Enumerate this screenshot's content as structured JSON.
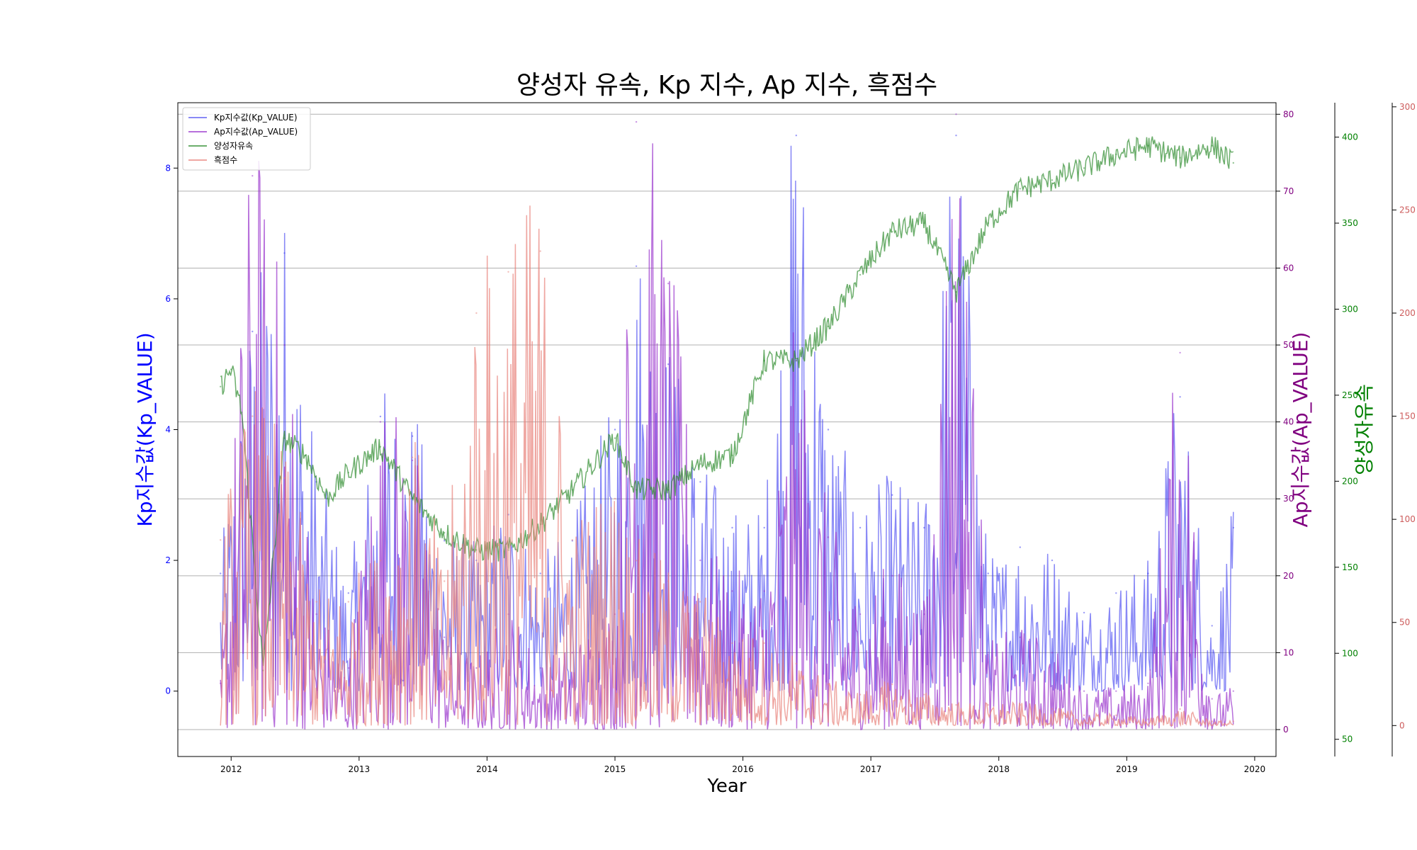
{
  "chart_data": {
    "type": "line",
    "title": "양성자 유속, Kp 지수, Ap 지수, 흑점수",
    "xlabel": "Year",
    "x_range": [
      "2011-08",
      "2020-03"
    ],
    "x_ticks": [
      "2012",
      "2013",
      "2014",
      "2015",
      "2016",
      "2017",
      "2018",
      "2019",
      "2020"
    ],
    "grid": "horizontal",
    "legend_placement": "top-left",
    "axes": [
      {
        "id": "kp",
        "side": "left",
        "label": "Kp지수값(Kp_VALUE)",
        "range": [
          -1.0,
          9.0
        ],
        "ticks": [
          "0",
          "2",
          "4",
          "6",
          "8"
        ],
        "color": "#0000ff"
      },
      {
        "id": "ap",
        "side": "right",
        "label": "Ap지수값(Ap_VALUE)",
        "range": [
          -3.5,
          81.5
        ],
        "ticks": [
          "0",
          "10",
          "20",
          "30",
          "40",
          "50",
          "60",
          "70",
          "80"
        ],
        "color": "#800080"
      },
      {
        "id": "proton",
        "side": "right",
        "label": "양성자유속",
        "range": [
          40,
          420
        ],
        "ticks": [
          "50",
          "100",
          "150",
          "200",
          "250",
          "300",
          "350",
          "400"
        ],
        "color": "#008000"
      },
      {
        "id": "sunspot",
        "side": "right",
        "label": "",
        "range": [
          -15,
          302
        ],
        "ticks": [
          "0",
          "50",
          "100",
          "150",
          "200",
          "250",
          "300"
        ],
        "color": "#cd5c5c"
      }
    ],
    "series": [
      {
        "name": "Kp지수값(Kp_VALUE)",
        "axis": "kp",
        "color": "#3a3af0",
        "opacity": 0.6,
        "points": [
          [
            "2011-12",
            1.8
          ],
          [
            "2012-03",
            5.5
          ],
          [
            "2012-06",
            6.7
          ],
          [
            "2012-09",
            3.2
          ],
          [
            "2012-12",
            1.5
          ],
          [
            "2013-03",
            4.2
          ],
          [
            "2013-06",
            3.9
          ],
          [
            "2013-09",
            2.3
          ],
          [
            "2013-12",
            2.0
          ],
          [
            "2014-03",
            2.7
          ],
          [
            "2014-06",
            1.8
          ],
          [
            "2014-09",
            2.3
          ],
          [
            "2015-01",
            4.0
          ],
          [
            "2015-03",
            6.5
          ],
          [
            "2015-06",
            5.0
          ],
          [
            "2015-09",
            3.2
          ],
          [
            "2015-12",
            2.5
          ],
          [
            "2016-03",
            2.5
          ],
          [
            "2016-06",
            8.5
          ],
          [
            "2016-09",
            4.0
          ],
          [
            "2016-12",
            2.5
          ],
          [
            "2017-03",
            3.0
          ],
          [
            "2017-06",
            2.5
          ],
          [
            "2017-09",
            8.5
          ],
          [
            "2017-12",
            1.8
          ],
          [
            "2018-03",
            2.2
          ],
          [
            "2018-06",
            2.0
          ],
          [
            "2018-09",
            1.2
          ],
          [
            "2018-12",
            1.5
          ],
          [
            "2019-03",
            1.8
          ],
          [
            "2019-06",
            4.5
          ],
          [
            "2019-09",
            1.0
          ],
          [
            "2019-11",
            2.5
          ]
        ]
      },
      {
        "name": "Ap지수값(Ap_VALUE)",
        "axis": "ap",
        "color": "#9932cc",
        "opacity": 0.7,
        "points": [
          [
            "2011-12",
            6
          ],
          [
            "2012-03",
            72
          ],
          [
            "2012-06",
            50
          ],
          [
            "2012-09",
            15
          ],
          [
            "2012-12",
            8
          ],
          [
            "2013-03",
            40
          ],
          [
            "2013-06",
            35
          ],
          [
            "2013-09",
            12
          ],
          [
            "2013-12",
            8
          ],
          [
            "2014-03",
            15
          ],
          [
            "2014-06",
            8
          ],
          [
            "2014-09",
            10
          ],
          [
            "2015-01",
            15
          ],
          [
            "2015-03",
            79
          ],
          [
            "2015-06",
            58
          ],
          [
            "2015-09",
            22
          ],
          [
            "2015-12",
            18
          ],
          [
            "2016-03",
            18
          ],
          [
            "2016-06",
            48
          ],
          [
            "2016-09",
            25
          ],
          [
            "2016-12",
            15
          ],
          [
            "2017-03",
            20
          ],
          [
            "2017-06",
            15
          ],
          [
            "2017-09",
            80
          ],
          [
            "2017-12",
            10
          ],
          [
            "2018-03",
            12
          ],
          [
            "2018-06",
            10
          ],
          [
            "2018-09",
            5
          ],
          [
            "2018-12",
            5
          ],
          [
            "2019-03",
            6
          ],
          [
            "2019-06",
            49
          ],
          [
            "2019-09",
            4
          ],
          [
            "2019-11",
            5
          ]
        ]
      },
      {
        "name": "양성자유속",
        "axis": "proton",
        "color": "#2e8b2e",
        "opacity": 0.7,
        "points": [
          [
            "2011-12",
            255
          ],
          [
            "2012-01",
            265
          ],
          [
            "2012-02",
            240
          ],
          [
            "2012-04",
            90
          ],
          [
            "2012-06",
            225
          ],
          [
            "2012-08",
            215
          ],
          [
            "2012-10",
            190
          ],
          [
            "2012-12",
            205
          ],
          [
            "2013-03",
            220
          ],
          [
            "2013-06",
            190
          ],
          [
            "2013-09",
            170
          ],
          [
            "2013-12",
            160
          ],
          [
            "2014-03",
            160
          ],
          [
            "2014-06",
            175
          ],
          [
            "2014-09",
            195
          ],
          [
            "2015-01",
            225
          ],
          [
            "2015-03",
            195
          ],
          [
            "2015-06",
            195
          ],
          [
            "2015-09",
            210
          ],
          [
            "2015-12",
            215
          ],
          [
            "2016-03",
            270
          ],
          [
            "2016-06",
            270
          ],
          [
            "2016-09",
            290
          ],
          [
            "2016-12",
            320
          ],
          [
            "2017-03",
            345
          ],
          [
            "2017-06",
            350
          ],
          [
            "2017-09",
            310
          ],
          [
            "2017-12",
            350
          ],
          [
            "2018-03",
            370
          ],
          [
            "2018-06",
            375
          ],
          [
            "2018-09",
            382
          ],
          [
            "2018-12",
            390
          ],
          [
            "2019-03",
            395
          ],
          [
            "2019-06",
            388
          ],
          [
            "2019-09",
            395
          ],
          [
            "2019-11",
            385
          ]
        ]
      },
      {
        "name": "흑점수",
        "axis": "sunspot",
        "color": "#e8827a",
        "opacity": 0.7,
        "points": [
          [
            "2011-12",
            90
          ],
          [
            "2012-03",
            150
          ],
          [
            "2012-06",
            120
          ],
          [
            "2012-09",
            60
          ],
          [
            "2012-12",
            60
          ],
          [
            "2013-03",
            80
          ],
          [
            "2013-06",
            130
          ],
          [
            "2013-09",
            70
          ],
          [
            "2013-12",
            200
          ],
          [
            "2014-03",
            220
          ],
          [
            "2014-06",
            230
          ],
          [
            "2014-09",
            90
          ],
          [
            "2015-01",
            110
          ],
          [
            "2015-03",
            80
          ],
          [
            "2015-06",
            70
          ],
          [
            "2015-09",
            60
          ],
          [
            "2015-12",
            40
          ],
          [
            "2016-03",
            40
          ],
          [
            "2016-06",
            30
          ],
          [
            "2016-09",
            20
          ],
          [
            "2016-12",
            15
          ],
          [
            "2017-03",
            20
          ],
          [
            "2017-06",
            15
          ],
          [
            "2017-09",
            10
          ],
          [
            "2017-12",
            10
          ],
          [
            "2018-03",
            10
          ],
          [
            "2018-06",
            8
          ],
          [
            "2018-09",
            5
          ],
          [
            "2018-12",
            5
          ],
          [
            "2019-03",
            3
          ],
          [
            "2019-06",
            8
          ],
          [
            "2019-09",
            2
          ],
          [
            "2019-11",
            2
          ]
        ]
      }
    ]
  }
}
